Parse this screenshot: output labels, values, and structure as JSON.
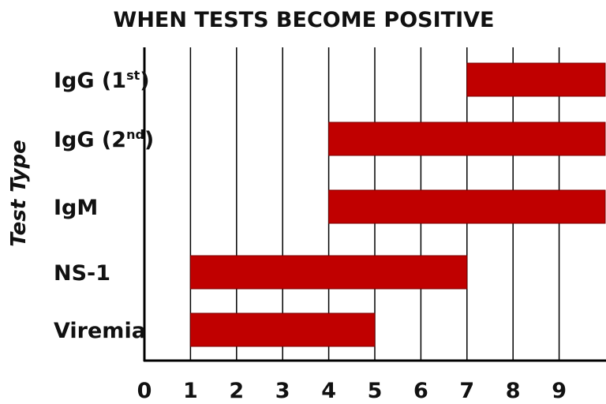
{
  "chart_data": {
    "type": "bar",
    "orientation": "horizontal",
    "title": "WHEN TESTS BECOME POSITIVE",
    "ylabel": "Test Type",
    "xlabel": "",
    "x_ticks": [
      "0",
      "1",
      "2",
      "3",
      "4",
      "5",
      "6",
      "7",
      "8",
      "9"
    ],
    "xlim": [
      0,
      10
    ],
    "grid": true,
    "bar_color": "#c00000",
    "categories": [
      {
        "base": "IgG (1",
        "sup": "st",
        "tail": ")"
      },
      {
        "base": "IgG (2",
        "sup": "nd",
        "tail": ")"
      },
      {
        "base": "IgM",
        "sup": "",
        "tail": ""
      },
      {
        "base": "NS-1",
        "sup": "",
        "tail": ""
      },
      {
        "base": "Viremia",
        "sup": "",
        "tail": ""
      }
    ],
    "ranges": [
      [
        7,
        10
      ],
      [
        4,
        10
      ],
      [
        4,
        10
      ],
      [
        1,
        7
      ],
      [
        1,
        5
      ]
    ]
  }
}
